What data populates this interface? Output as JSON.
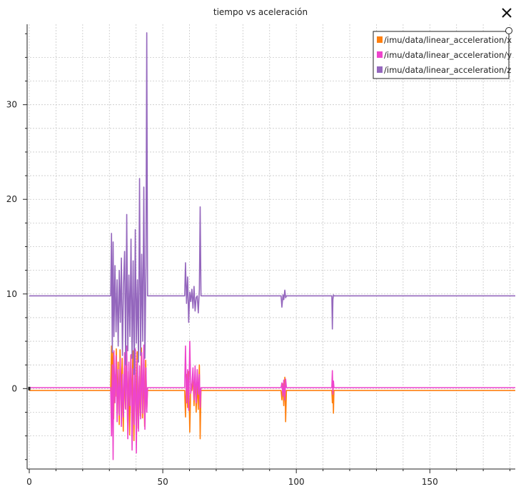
{
  "title": "tiempo vs aceleración",
  "close_icon": "close-icon",
  "chart_data": {
    "type": "line",
    "title": "tiempo vs aceleración",
    "xlabel": "",
    "ylabel": "",
    "xlim": [
      0,
      182
    ],
    "ylim": [
      -8.5,
      38.5
    ],
    "x_ticks": [
      0,
      50,
      100,
      150
    ],
    "y_ticks": [
      0,
      10,
      20,
      30
    ],
    "grid": true,
    "legend_position": "top-right",
    "series": [
      {
        "name": "/imu/data/linear_acceleration/x",
        "color": "#ff7f0e",
        "points": [
          [
            0,
            -0.2
          ],
          [
            30.5,
            -0.2
          ],
          [
            30.8,
            4.5
          ],
          [
            31.0,
            -1.5
          ],
          [
            31.3,
            3.8
          ],
          [
            31.6,
            -3.2
          ],
          [
            31.9,
            1.5
          ],
          [
            32.3,
            -0.8
          ],
          [
            32.6,
            4.2
          ],
          [
            33.0,
            -2.6
          ],
          [
            33.3,
            2.8
          ],
          [
            33.7,
            -3.8
          ],
          [
            34.0,
            4.1
          ],
          [
            34.4,
            -1.2
          ],
          [
            34.8,
            3.2
          ],
          [
            35.2,
            -4.5
          ],
          [
            35.6,
            2.2
          ],
          [
            36.0,
            -2.1
          ],
          [
            36.4,
            4.4
          ],
          [
            36.8,
            -3.6
          ],
          [
            37.2,
            1.8
          ],
          [
            37.6,
            -4.9
          ],
          [
            38.0,
            3.5
          ],
          [
            38.4,
            -2.4
          ],
          [
            38.8,
            4.0
          ],
          [
            39.2,
            -5.5
          ],
          [
            39.6,
            2.6
          ],
          [
            40.0,
            -3.4
          ],
          [
            40.4,
            3.9
          ],
          [
            40.8,
            -4.2
          ],
          [
            41.2,
            1.3
          ],
          [
            41.6,
            -2.9
          ],
          [
            42.0,
            4.3
          ],
          [
            42.4,
            -3.1
          ],
          [
            42.8,
            2.0
          ],
          [
            43.2,
            -4.0
          ],
          [
            43.6,
            3.0
          ],
          [
            44.0,
            -2.2
          ],
          [
            44.3,
            -0.2
          ],
          [
            58.2,
            -0.2
          ],
          [
            58.5,
            -3.0
          ],
          [
            58.9,
            1.5
          ],
          [
            59.3,
            -2.0
          ],
          [
            59.7,
            1.8
          ],
          [
            60.1,
            -4.6
          ],
          [
            60.5,
            0.5
          ],
          [
            60.9,
            -0.2
          ],
          [
            61.3,
            1.2
          ],
          [
            61.7,
            -1.8
          ],
          [
            62.1,
            1.5
          ],
          [
            62.5,
            -2.5
          ],
          [
            62.9,
            0.8
          ],
          [
            63.3,
            -2.2
          ],
          [
            63.7,
            2.5
          ],
          [
            64.0,
            -5.3
          ],
          [
            64.3,
            -0.2
          ],
          [
            94.3,
            -0.2
          ],
          [
            94.6,
            -1.2
          ],
          [
            95.0,
            0.5
          ],
          [
            95.3,
            -1.8
          ],
          [
            95.7,
            1.2
          ],
          [
            96.0,
            -3.5
          ],
          [
            96.3,
            -0.2
          ],
          [
            113.3,
            -0.2
          ],
          [
            113.5,
            -1.5
          ],
          [
            113.7,
            0.4
          ],
          [
            113.9,
            -2.6
          ],
          [
            114.1,
            -0.2
          ],
          [
            182,
            -0.2
          ]
        ]
      },
      {
        "name": "/imu/data/linear_acceleration/y",
        "color": "#ee44cc",
        "points": [
          [
            0,
            0.1
          ],
          [
            30.5,
            0.1
          ],
          [
            30.8,
            -5.0
          ],
          [
            31.1,
            2.5
          ],
          [
            31.4,
            -7.5
          ],
          [
            31.7,
            4.0
          ],
          [
            32.1,
            -1.5
          ],
          [
            32.5,
            3.5
          ],
          [
            32.9,
            -3.5
          ],
          [
            33.3,
            2.0
          ],
          [
            33.7,
            -2.8
          ],
          [
            34.1,
            3.2
          ],
          [
            34.5,
            -4.0
          ],
          [
            34.9,
            1.5
          ],
          [
            35.3,
            -3.0
          ],
          [
            35.7,
            3.8
          ],
          [
            36.1,
            -2.2
          ],
          [
            36.5,
            4.5
          ],
          [
            36.9,
            -5.3
          ],
          [
            37.3,
            2.8
          ],
          [
            37.7,
            -1.8
          ],
          [
            38.1,
            3.6
          ],
          [
            38.5,
            -6.5
          ],
          [
            38.9,
            2.1
          ],
          [
            39.3,
            -3.8
          ],
          [
            39.7,
            4.2
          ],
          [
            40.1,
            -6.8
          ],
          [
            40.5,
            3.0
          ],
          [
            40.9,
            -4.5
          ],
          [
            41.3,
            2.4
          ],
          [
            41.7,
            -3.2
          ],
          [
            42.1,
            3.8
          ],
          [
            42.5,
            -2.6
          ],
          [
            42.9,
            4.6
          ],
          [
            43.3,
            -4.3
          ],
          [
            43.7,
            2.2
          ],
          [
            44.0,
            -2.5
          ],
          [
            44.3,
            0.1
          ],
          [
            58.2,
            0.1
          ],
          [
            58.5,
            4.5
          ],
          [
            58.9,
            -1.5
          ],
          [
            59.3,
            2.0
          ],
          [
            59.7,
            -2.3
          ],
          [
            60.1,
            5.0
          ],
          [
            60.5,
            -0.5
          ],
          [
            60.9,
            0.4
          ],
          [
            61.3,
            2.2
          ],
          [
            61.7,
            -1.2
          ],
          [
            62.1,
            2.4
          ],
          [
            62.5,
            -1.5
          ],
          [
            62.9,
            2.0
          ],
          [
            63.3,
            -0.6
          ],
          [
            63.7,
            1.5
          ],
          [
            64.0,
            -2.0
          ],
          [
            64.3,
            0.1
          ],
          [
            94.3,
            0.1
          ],
          [
            94.6,
            0.6
          ],
          [
            95.0,
            -0.8
          ],
          [
            95.3,
            0.9
          ],
          [
            95.7,
            -1.2
          ],
          [
            96.0,
            1.0
          ],
          [
            96.3,
            0.1
          ],
          [
            113.3,
            0.1
          ],
          [
            113.5,
            1.9
          ],
          [
            113.7,
            -0.6
          ],
          [
            113.9,
            0.8
          ],
          [
            114.1,
            0.1
          ],
          [
            182,
            0.1
          ]
        ]
      },
      {
        "name": "/imu/data/linear_acceleration/z",
        "color": "#9467bd",
        "points": [
          [
            0,
            9.8
          ],
          [
            30.5,
            9.8
          ],
          [
            30.8,
            16.4
          ],
          [
            31.1,
            3.8
          ],
          [
            31.4,
            15.5
          ],
          [
            31.7,
            5.5
          ],
          [
            32.1,
            13.0
          ],
          [
            32.5,
            6.0
          ],
          [
            32.9,
            11.5
          ],
          [
            33.3,
            4.5
          ],
          [
            33.7,
            12.5
          ],
          [
            34.1,
            7.0
          ],
          [
            34.5,
            13.8
          ],
          [
            34.9,
            3.5
          ],
          [
            35.3,
            11.0
          ],
          [
            35.7,
            14.5
          ],
          [
            36.1,
            2.5
          ],
          [
            36.5,
            18.4
          ],
          [
            36.9,
            4.0
          ],
          [
            37.3,
            12.0
          ],
          [
            37.7,
            5.5
          ],
          [
            38.1,
            15.8
          ],
          [
            38.5,
            3.2
          ],
          [
            38.9,
            13.5
          ],
          [
            39.3,
            1.5
          ],
          [
            39.7,
            16.8
          ],
          [
            40.1,
            4.8
          ],
          [
            40.5,
            11.5
          ],
          [
            40.9,
            2.8
          ],
          [
            41.3,
            22.2
          ],
          [
            41.7,
            3.5
          ],
          [
            42.1,
            14.2
          ],
          [
            42.5,
            5.0
          ],
          [
            42.9,
            21.3
          ],
          [
            43.3,
            3.2
          ],
          [
            43.7,
            13.0
          ],
          [
            44.0,
            37.6
          ],
          [
            44.3,
            9.8
          ],
          [
            58.2,
            9.8
          ],
          [
            58.5,
            13.3
          ],
          [
            58.9,
            9.0
          ],
          [
            59.3,
            11.8
          ],
          [
            59.7,
            7.0
          ],
          [
            60.1,
            10.2
          ],
          [
            60.5,
            9.2
          ],
          [
            60.9,
            10.5
          ],
          [
            61.3,
            8.5
          ],
          [
            61.7,
            10.8
          ],
          [
            62.1,
            8.2
          ],
          [
            62.5,
            9.6
          ],
          [
            62.9,
            9.8
          ],
          [
            63.3,
            8.0
          ],
          [
            63.7,
            10.5
          ],
          [
            64.0,
            19.2
          ],
          [
            64.3,
            9.8
          ],
          [
            94.3,
            9.8
          ],
          [
            94.6,
            8.6
          ],
          [
            95.0,
            9.9
          ],
          [
            95.3,
            9.4
          ],
          [
            95.7,
            10.4
          ],
          [
            96.0,
            9.6
          ],
          [
            96.3,
            9.8
          ],
          [
            113.3,
            9.8
          ],
          [
            113.5,
            6.3
          ],
          [
            113.7,
            9.4
          ],
          [
            113.9,
            9.9
          ],
          [
            114.1,
            9.8
          ],
          [
            182,
            9.8
          ]
        ]
      }
    ]
  }
}
